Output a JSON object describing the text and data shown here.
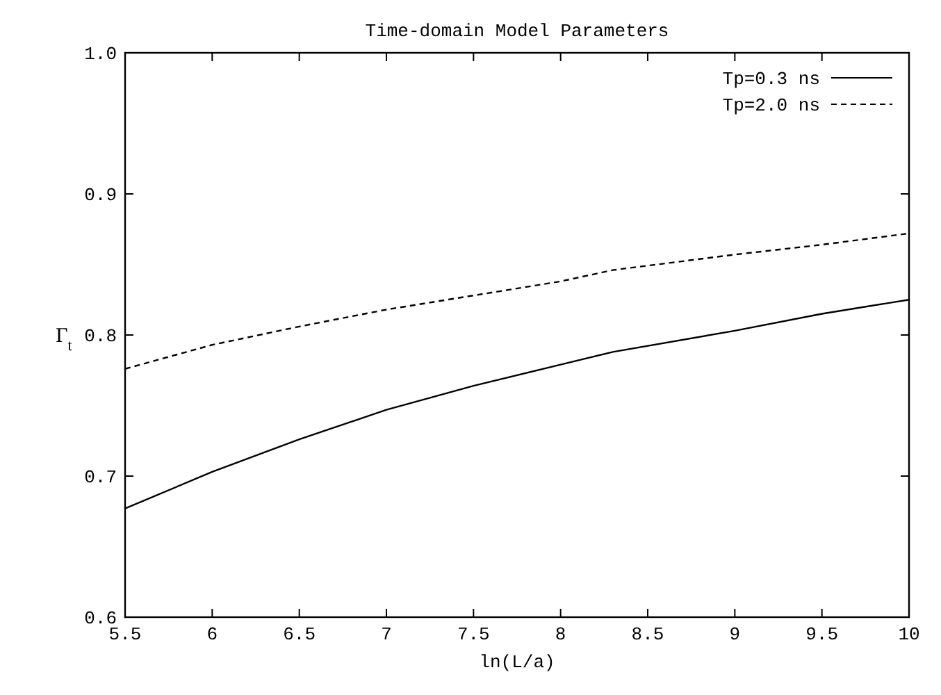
{
  "chart_data": {
    "type": "line",
    "title": "Time-domain Model Parameters",
    "xlabel": "ln(L/a)",
    "ylabel": "Γ$_{t}$",
    "xlim": [
      5.5,
      10
    ],
    "xticks": [
      {
        "value": 5.5,
        "label": "5.5"
      },
      6,
      {
        "value": 6.5,
        "label": "6.5"
      },
      7,
      {
        "value": 7.5,
        "label": "7.5"
      },
      8,
      {
        "value": 8.5,
        "label": "8.5"
      },
      9,
      {
        "value": 9.5,
        "label": "9.5"
      },
      10
    ],
    "ylim": [
      0.6,
      1.0
    ],
    "yticks": [
      {
        "value": 0.6,
        "label": "0.6"
      },
      {
        "value": 0.7,
        "label": "0.7"
      },
      {
        "value": 0.8,
        "label": "0.8"
      },
      {
        "value": 0.9,
        "label": "0.9"
      },
      {
        "value": 1.0,
        "label": "1.0"
      }
    ],
    "x": [
      5.5,
      6,
      6.5,
      7,
      7.5,
      8,
      8.3,
      9,
      9.5,
      10
    ],
    "legend": "top right",
    "grid": false,
    "series": [
      {
        "name": "Tp=0.3 ns",
        "color": "#000000",
        "line_style": "solid",
        "values": [
          0.677,
          0.703,
          0.726,
          0.747,
          0.764,
          0.779,
          0.788,
          0.803,
          0.815,
          0.825
        ]
      },
      {
        "name": "Tp=2.0 ns",
        "color": "#000000",
        "line_style": "dashed",
        "values": [
          0.776,
          0.793,
          0.806,
          0.818,
          0.828,
          0.838,
          0.846,
          0.857,
          0.864,
          0.872
        ]
      }
    ]
  }
}
